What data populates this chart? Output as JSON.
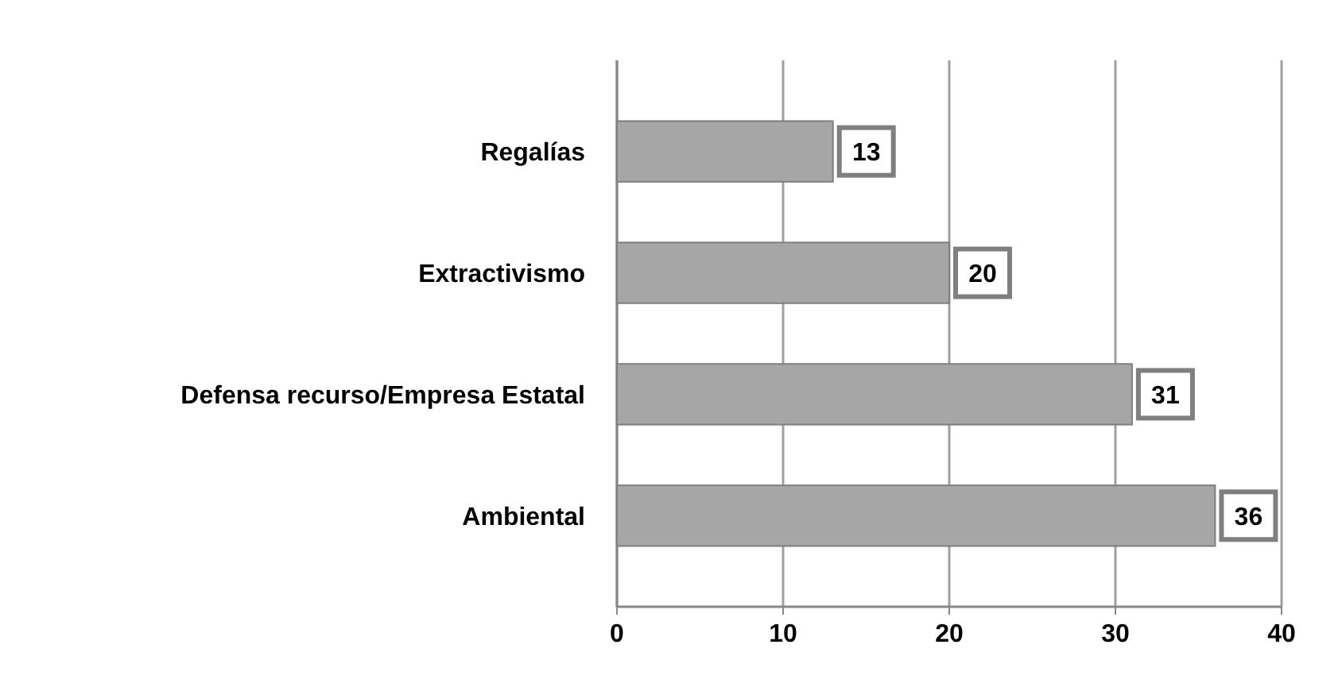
{
  "chart_data": {
    "type": "bar",
    "orientation": "horizontal",
    "categories": [
      "Regalías",
      "Extractivismo",
      "Defensa recurso/Empresa Estatal",
      "Ambiental"
    ],
    "values": [
      13,
      20,
      31,
      36
    ],
    "color": "#a6a6a6",
    "xlim": [
      0,
      40
    ],
    "xticks": [
      0,
      10,
      20,
      30,
      40
    ],
    "grid": "x",
    "data_labels": true
  }
}
